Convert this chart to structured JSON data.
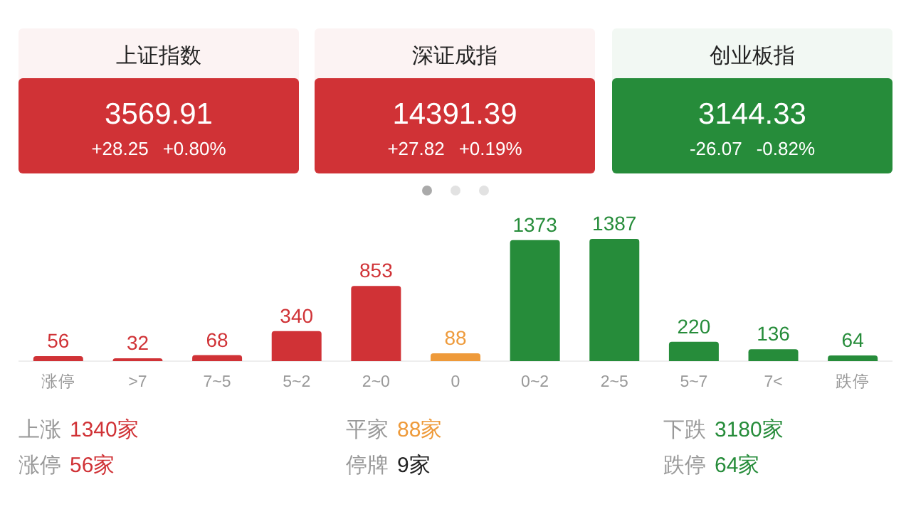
{
  "chart_data": [
    {
      "type": "other",
      "title": "上证指数",
      "color": "#d03236",
      "annotations": [
        "3569.91",
        "+28.25",
        "+0.80%"
      ]
    },
    {
      "type": "other",
      "title": "深证成指",
      "color": "#d03236",
      "annotations": [
        "14391.39",
        "+27.82",
        "+0.19%"
      ]
    },
    {
      "type": "other",
      "title": "创业板指",
      "color": "#268c3a",
      "annotations": [
        "3144.33",
        "-26.07",
        "-0.82%"
      ]
    },
    {
      "type": "bar",
      "categories": [
        "涨停",
        ">7",
        "7~5",
        "5~2",
        "2~0",
        "0",
        "0~2",
        "2~5",
        "5~7",
        "7<",
        "跌停"
      ],
      "values": [
        56,
        32,
        68,
        340,
        853,
        88,
        1373,
        1387,
        220,
        136,
        64
      ],
      "colors": [
        "#d03236",
        "#d03236",
        "#d03236",
        "#d03236",
        "#d03236",
        "#ee9a3a",
        "#268c3a",
        "#268c3a",
        "#268c3a",
        "#268c3a",
        "#268c3a"
      ],
      "data_labels": true,
      "annotations": [
        "上涨 1340家",
        "涨停 56家",
        "平家 88家",
        "停牌 9家",
        "下跌 3180家",
        "跌停 64家"
      ]
    }
  ]
}
